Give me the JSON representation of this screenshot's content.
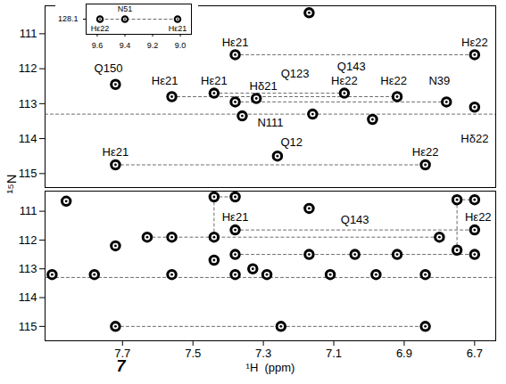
{
  "chart_data": {
    "type": "scatter",
    "x_label": "¹H  (ppm)",
    "y_label": "¹⁵N",
    "annotation": "7",
    "color": "black",
    "marker": "contour",
    "line_style": "dashed",
    "xlim": [
      7.92,
      6.64
    ],
    "xticks": [
      7.7,
      7.5,
      7.3,
      7.1,
      6.9,
      6.7
    ],
    "panels": [
      {
        "ylim": [
          110.2,
          115.4
        ],
        "yticks": [
          111,
          112,
          113,
          114,
          115
        ],
        "tick_labels": "y",
        "peaks": {
          "x": [
            7.17,
            7.38,
            6.7,
            7.72,
            7.56,
            7.44,
            7.38,
            7.32,
            7.36,
            7.07,
            6.92,
            6.78,
            6.7,
            7.16,
            6.99,
            7.72,
            6.84,
            7.26
          ],
          "y": [
            110.4,
            111.6,
            111.6,
            112.45,
            112.8,
            112.7,
            112.95,
            112.85,
            113.35,
            112.7,
            112.8,
            112.95,
            113.1,
            113.3,
            113.45,
            114.75,
            114.75,
            114.5
          ]
        },
        "connections": [
          {
            "x": [
              7.38,
              6.7
            ],
            "y": [
              111.6,
              111.6
            ]
          },
          {
            "x": [
              7.56,
              6.92
            ],
            "y": [
              112.8,
              112.8
            ]
          },
          {
            "x": [
              7.44,
              7.07
            ],
            "y": [
              112.7,
              112.7
            ]
          },
          {
            "x": [
              7.38,
              6.78
            ],
            "y": [
              112.95,
              112.95
            ]
          },
          {
            "x": [
              7.92,
              6.64
            ],
            "y": [
              113.3,
              113.3
            ]
          },
          {
            "x": [
              7.72,
              6.84
            ],
            "y": [
              114.75,
              114.75
            ]
          }
        ],
        "labels": [
          {
            "text": "Hε21",
            "x": 7.38,
            "y": 111.25
          },
          {
            "text": "Hε22",
            "x": 6.7,
            "y": 111.25
          },
          {
            "text": "Q143",
            "x": 7.05,
            "y": 111.95
          },
          {
            "text": "Q150",
            "x": 7.74,
            "y": 112.0
          },
          {
            "text": "Hε21",
            "x": 7.58,
            "y": 112.35
          },
          {
            "text": "Hε21",
            "x": 7.44,
            "y": 112.35
          },
          {
            "text": "Hδ21",
            "x": 7.3,
            "y": 112.5
          },
          {
            "text": "Q123",
            "x": 7.21,
            "y": 112.15
          },
          {
            "text": "Hε22",
            "x": 7.07,
            "y": 112.35
          },
          {
            "text": "Hε22",
            "x": 6.93,
            "y": 112.35
          },
          {
            "text": "N39",
            "x": 6.8,
            "y": 112.35
          },
          {
            "text": "Hδ22",
            "x": 6.7,
            "y": 114.0
          },
          {
            "text": "N111",
            "x": 7.28,
            "y": 113.55
          },
          {
            "text": "Q12",
            "x": 7.22,
            "y": 114.1
          },
          {
            "text": "Hε21",
            "x": 7.72,
            "y": 114.4
          },
          {
            "text": "Hε22",
            "x": 6.84,
            "y": 114.4
          }
        ]
      },
      {
        "ylim": [
          110.3,
          115.5
        ],
        "yticks": [
          111,
          112,
          113,
          114,
          115
        ],
        "peaks": {
          "x": [
            7.86,
            7.9,
            7.78,
            7.72,
            7.72,
            7.63,
            7.56,
            7.56,
            7.44,
            7.44,
            7.38,
            7.44,
            7.38,
            7.38,
            7.38,
            7.33,
            7.29,
            7.17,
            7.17,
            7.25,
            7.11,
            7.04,
            6.98,
            6.92,
            6.84,
            6.84,
            6.8,
            6.75,
            6.7,
            6.7,
            6.75,
            6.7
          ],
          "y": [
            110.65,
            113.2,
            113.2,
            112.2,
            115.0,
            111.9,
            111.9,
            113.2,
            112.7,
            111.9,
            111.65,
            110.5,
            110.5,
            112.5,
            113.2,
            113.0,
            113.2,
            110.9,
            112.5,
            115.0,
            113.2,
            112.5,
            113.2,
            112.5,
            113.2,
            115.0,
            111.9,
            110.6,
            110.6,
            112.5,
            112.35,
            111.65
          ]
        },
        "connections": [
          {
            "x": [
              7.44,
              7.38
            ],
            "y": [
              110.5,
              110.5
            ]
          },
          {
            "x": [
              6.75,
              6.7
            ],
            "y": [
              110.6,
              110.6
            ]
          },
          {
            "x": [
              7.44,
              7.44
            ],
            "y": [
              110.5,
              111.9
            ]
          },
          {
            "x": [
              6.75,
              6.75
            ],
            "y": [
              110.6,
              112.35
            ]
          },
          {
            "x": [
              7.38,
              6.7
            ],
            "y": [
              111.65,
              111.65
            ]
          },
          {
            "x": [
              7.63,
              6.8
            ],
            "y": [
              111.9,
              111.9
            ]
          },
          {
            "x": [
              7.38,
              6.7
            ],
            "y": [
              112.5,
              112.5
            ]
          },
          {
            "x": [
              7.92,
              6.64
            ],
            "y": [
              113.3,
              113.3
            ]
          },
          {
            "x": [
              7.72,
              6.84
            ],
            "y": [
              115.0,
              115.0
            ]
          }
        ],
        "labels": [
          {
            "text": "Hε21",
            "x": 7.38,
            "y": 111.2
          },
          {
            "text": "Q143",
            "x": 7.04,
            "y": 111.3
          },
          {
            "text": "Hε22",
            "x": 6.69,
            "y": 111.2
          }
        ]
      }
    ],
    "inset": {
      "xlim": [
        9.68,
        8.92
      ],
      "xticks": [
        9.6,
        9.4,
        9.2,
        {
          "value": 9,
          "label": "9.0"
        }
      ],
      "ylim": [
        127.88,
        128.32
      ],
      "yticks": [
        128.1
      ],
      "peaks": {
        "x": [
          9.58,
          9.4,
          9.02
        ],
        "y": [
          128.1,
          128.1,
          128.1
        ]
      },
      "connections": [
        {
          "x": [
            9.58,
            9.02
          ],
          "y": [
            128.1,
            128.1
          ]
        }
      ],
      "labels": [
        {
          "text": "Hε22",
          "x": 9.58,
          "y": 128.24
        },
        {
          "text": "N51",
          "x": 9.4,
          "y": 127.95
        },
        {
          "text": "Hε21",
          "x": 9.02,
          "y": 128.24
        }
      ]
    }
  }
}
